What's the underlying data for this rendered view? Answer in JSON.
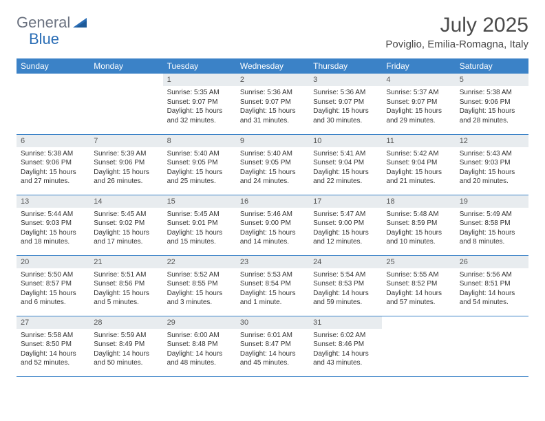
{
  "brand": {
    "part1": "General",
    "part2": "Blue"
  },
  "title": "July 2025",
  "location": "Poviglio, Emilia-Romagna, Italy",
  "colors": {
    "header_bg": "#3b82c7",
    "header_text": "#ffffff",
    "daynum_bg": "#e8ecef",
    "cell_border": "#3b82c7",
    "logo_gray": "#6b7280",
    "logo_blue": "#2a6db5"
  },
  "weekdays": [
    "Sunday",
    "Monday",
    "Tuesday",
    "Wednesday",
    "Thursday",
    "Friday",
    "Saturday"
  ],
  "grid": [
    [
      {
        "blank": true
      },
      {
        "blank": true
      },
      {
        "n": "1",
        "sunrise": "5:35 AM",
        "sunset": "9:07 PM",
        "daylight": "15 hours and 32 minutes."
      },
      {
        "n": "2",
        "sunrise": "5:36 AM",
        "sunset": "9:07 PM",
        "daylight": "15 hours and 31 minutes."
      },
      {
        "n": "3",
        "sunrise": "5:36 AM",
        "sunset": "9:07 PM",
        "daylight": "15 hours and 30 minutes."
      },
      {
        "n": "4",
        "sunrise": "5:37 AM",
        "sunset": "9:07 PM",
        "daylight": "15 hours and 29 minutes."
      },
      {
        "n": "5",
        "sunrise": "5:38 AM",
        "sunset": "9:06 PM",
        "daylight": "15 hours and 28 minutes."
      }
    ],
    [
      {
        "n": "6",
        "sunrise": "5:38 AM",
        "sunset": "9:06 PM",
        "daylight": "15 hours and 27 minutes."
      },
      {
        "n": "7",
        "sunrise": "5:39 AM",
        "sunset": "9:06 PM",
        "daylight": "15 hours and 26 minutes."
      },
      {
        "n": "8",
        "sunrise": "5:40 AM",
        "sunset": "9:05 PM",
        "daylight": "15 hours and 25 minutes."
      },
      {
        "n": "9",
        "sunrise": "5:40 AM",
        "sunset": "9:05 PM",
        "daylight": "15 hours and 24 minutes."
      },
      {
        "n": "10",
        "sunrise": "5:41 AM",
        "sunset": "9:04 PM",
        "daylight": "15 hours and 22 minutes."
      },
      {
        "n": "11",
        "sunrise": "5:42 AM",
        "sunset": "9:04 PM",
        "daylight": "15 hours and 21 minutes."
      },
      {
        "n": "12",
        "sunrise": "5:43 AM",
        "sunset": "9:03 PM",
        "daylight": "15 hours and 20 minutes."
      }
    ],
    [
      {
        "n": "13",
        "sunrise": "5:44 AM",
        "sunset": "9:03 PM",
        "daylight": "15 hours and 18 minutes."
      },
      {
        "n": "14",
        "sunrise": "5:45 AM",
        "sunset": "9:02 PM",
        "daylight": "15 hours and 17 minutes."
      },
      {
        "n": "15",
        "sunrise": "5:45 AM",
        "sunset": "9:01 PM",
        "daylight": "15 hours and 15 minutes."
      },
      {
        "n": "16",
        "sunrise": "5:46 AM",
        "sunset": "9:00 PM",
        "daylight": "15 hours and 14 minutes."
      },
      {
        "n": "17",
        "sunrise": "5:47 AM",
        "sunset": "9:00 PM",
        "daylight": "15 hours and 12 minutes."
      },
      {
        "n": "18",
        "sunrise": "5:48 AM",
        "sunset": "8:59 PM",
        "daylight": "15 hours and 10 minutes."
      },
      {
        "n": "19",
        "sunrise": "5:49 AM",
        "sunset": "8:58 PM",
        "daylight": "15 hours and 8 minutes."
      }
    ],
    [
      {
        "n": "20",
        "sunrise": "5:50 AM",
        "sunset": "8:57 PM",
        "daylight": "15 hours and 6 minutes."
      },
      {
        "n": "21",
        "sunrise": "5:51 AM",
        "sunset": "8:56 PM",
        "daylight": "15 hours and 5 minutes."
      },
      {
        "n": "22",
        "sunrise": "5:52 AM",
        "sunset": "8:55 PM",
        "daylight": "15 hours and 3 minutes."
      },
      {
        "n": "23",
        "sunrise": "5:53 AM",
        "sunset": "8:54 PM",
        "daylight": "15 hours and 1 minute."
      },
      {
        "n": "24",
        "sunrise": "5:54 AM",
        "sunset": "8:53 PM",
        "daylight": "14 hours and 59 minutes."
      },
      {
        "n": "25",
        "sunrise": "5:55 AM",
        "sunset": "8:52 PM",
        "daylight": "14 hours and 57 minutes."
      },
      {
        "n": "26",
        "sunrise": "5:56 AM",
        "sunset": "8:51 PM",
        "daylight": "14 hours and 54 minutes."
      }
    ],
    [
      {
        "n": "27",
        "sunrise": "5:58 AM",
        "sunset": "8:50 PM",
        "daylight": "14 hours and 52 minutes."
      },
      {
        "n": "28",
        "sunrise": "5:59 AM",
        "sunset": "8:49 PM",
        "daylight": "14 hours and 50 minutes."
      },
      {
        "n": "29",
        "sunrise": "6:00 AM",
        "sunset": "8:48 PM",
        "daylight": "14 hours and 48 minutes."
      },
      {
        "n": "30",
        "sunrise": "6:01 AM",
        "sunset": "8:47 PM",
        "daylight": "14 hours and 45 minutes."
      },
      {
        "n": "31",
        "sunrise": "6:02 AM",
        "sunset": "8:46 PM",
        "daylight": "14 hours and 43 minutes."
      },
      {
        "blank": true
      },
      {
        "blank": true
      }
    ]
  ],
  "labels": {
    "sunrise": "Sunrise: ",
    "sunset": "Sunset: ",
    "daylight": "Daylight: "
  }
}
